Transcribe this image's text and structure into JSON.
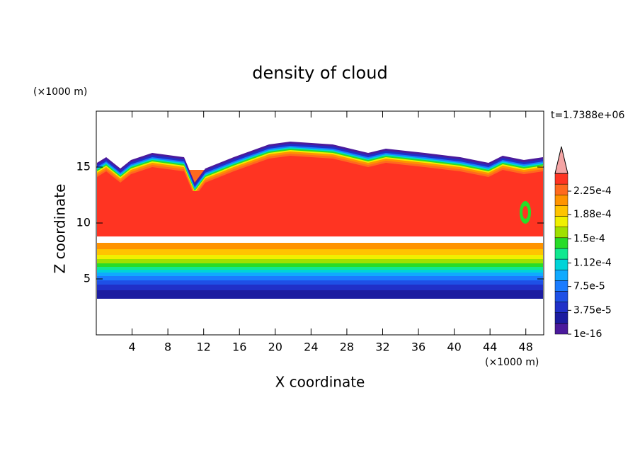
{
  "chart_data": {
    "type": "contour",
    "title": "density of cloud",
    "xlabel": "X coordinate",
    "ylabel": "Z coordinate",
    "x_unit": "(×1000 m)",
    "y_unit": "(×1000 m)",
    "annotation": "t=1.7388e+06",
    "xlim": [
      0,
      50
    ],
    "xticks": [
      4,
      8,
      12,
      16,
      20,
      24,
      28,
      32,
      36,
      40,
      44,
      48
    ],
    "ylim": [
      0,
      20
    ],
    "yticks": [
      5,
      10,
      15
    ],
    "colorbar": {
      "ticks": [
        1e-16,
        {
          "value": 3.75e-05,
          "label": "3.75e-5"
        },
        {
          "value": 7.5e-05,
          "label": "7.5e-5"
        },
        {
          "value": 0.000112,
          "label": "1.12e-4"
        },
        {
          "value": 0.00015,
          "label": "1.5e-4"
        },
        {
          "value": 0.000188,
          "label": "1.88e-4"
        },
        {
          "value": 0.000225,
          "label": "2.25e-4"
        }
      ],
      "colors": [
        "#4b1a9c",
        "#1c1ca0",
        "#2030c8",
        "#1e50e6",
        "#1a7cff",
        "#10aaff",
        "#00d4d8",
        "#10e890",
        "#28dc28",
        "#a0e000",
        "#f0f000",
        "#ffc400",
        "#ff9400",
        "#ff6a1e",
        "#ff3422"
      ],
      "extend_color": "#f4a4a4"
    }
  }
}
